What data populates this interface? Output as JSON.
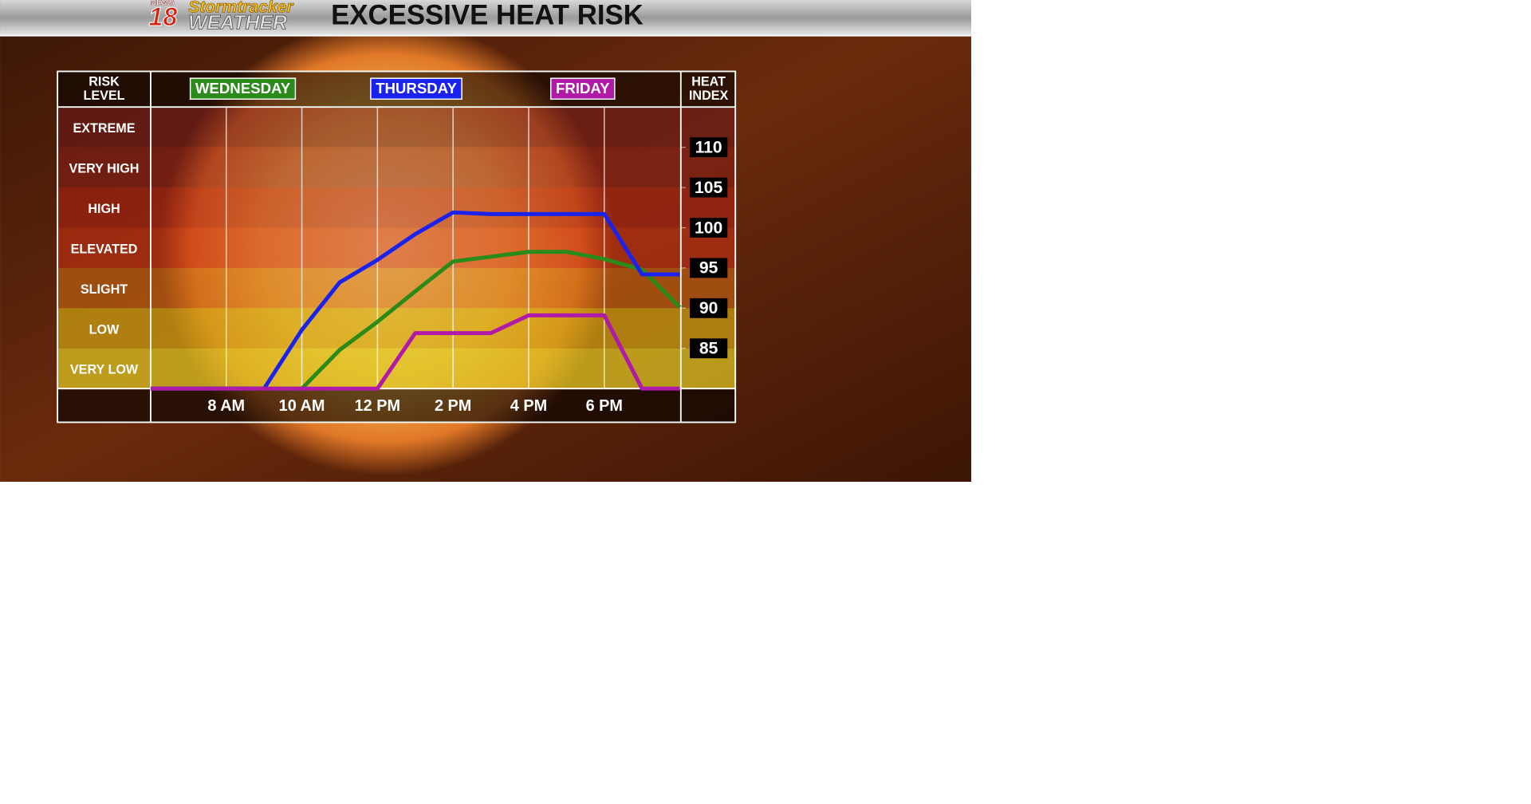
{
  "chart_data": {
    "type": "line",
    "title": "EXCESSIVE HEAT RISK",
    "logo": {
      "network": "NEWS",
      "channel": "18",
      "brand": "Stormtracker",
      "brand_sub": "WEATHER"
    },
    "left_header": [
      "RISK",
      "LEVEL"
    ],
    "right_header": [
      "HEAT",
      "INDEX"
    ],
    "risk_levels": [
      "EXTREME",
      "VERY HIGH",
      "HIGH",
      "ELEVATED",
      "SLIGHT",
      "LOW",
      "VERY LOW"
    ],
    "x": [
      6,
      7,
      8,
      9,
      10,
      11,
      12,
      13,
      14,
      15,
      16,
      17,
      18,
      19,
      20
    ],
    "xlim": [
      6,
      20
    ],
    "xticks": [
      {
        "value": 8,
        "label": "8 AM"
      },
      {
        "value": 10,
        "label": "10 AM"
      },
      {
        "value": 12,
        "label": "12 PM"
      },
      {
        "value": 14,
        "label": "2 PM"
      },
      {
        "value": 16,
        "label": "4 PM"
      },
      {
        "value": 18,
        "label": "6 PM"
      }
    ],
    "ylim": [
      80,
      115
    ],
    "yticks": [
      85,
      90,
      95,
      100,
      105,
      110
    ],
    "grid": true,
    "series": [
      {
        "name": "WEDNESDAY",
        "color": "#2a8a1a",
        "values": [
          80,
          80,
          80,
          80,
          80,
          84.8,
          88.3,
          92.1,
          95.8,
          96.4,
          97,
          97,
          96.1,
          94.8,
          90.1
        ]
      },
      {
        "name": "THURSDAY",
        "color": "#1a22ee",
        "values": [
          80,
          80,
          80,
          80,
          87.3,
          93.2,
          96,
          99.2,
          101.9,
          101.7,
          101.7,
          101.7,
          101.7,
          94.2,
          94.2
        ]
      },
      {
        "name": "FRIDAY",
        "color": "#b01aa8",
        "values": [
          80,
          80,
          80,
          80,
          80,
          80,
          80,
          86.9,
          86.9,
          86.9,
          89.1,
          89.1,
          89.1,
          80,
          80
        ]
      }
    ]
  }
}
